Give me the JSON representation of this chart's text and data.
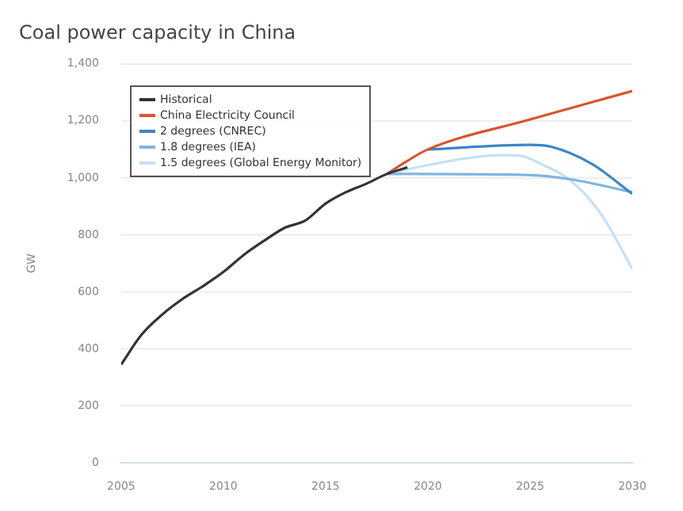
{
  "chart_data": {
    "type": "line",
    "title": "Coal power capacity in China",
    "ylabel": "GW",
    "xlim": [
      2005,
      2030
    ],
    "xticks": [
      2005,
      2010,
      2015,
      2020,
      2025,
      2030
    ],
    "ylim": [
      0,
      1400
    ],
    "yticks": [
      {
        "value": 0,
        "label": "0"
      },
      {
        "value": 200,
        "label": "200"
      },
      {
        "value": 400,
        "label": "400"
      },
      {
        "value": 600,
        "label": "600"
      },
      {
        "value": 800,
        "label": "800"
      },
      {
        "value": 1000,
        "label": "1,000"
      },
      {
        "value": 1200,
        "label": "1,200"
      },
      {
        "value": 1400,
        "label": "1,400"
      }
    ],
    "grid": "y",
    "legend": "top left",
    "marker": "none",
    "line_style": "solid",
    "series": [
      {
        "name": "Historical",
        "color": "#333333",
        "x": [
          2005,
          2006,
          2007,
          2008,
          2009,
          2010,
          2011,
          2012,
          2013,
          2014,
          2015,
          2016,
          2017,
          2018,
          2019
        ],
        "values": [
          345,
          450,
          520,
          575,
          620,
          670,
          730,
          780,
          825,
          850,
          910,
          950,
          980,
          1014,
          1037
        ]
      },
      {
        "name": "China Electricity Council",
        "color": "#d9542f",
        "x": [
          2018,
          2019,
          2020,
          2025,
          2030
        ],
        "values": [
          1014,
          1060,
          1100,
          1205,
          1305
        ]
      },
      {
        "name": "2 degrees (CNREC)",
        "color": "#3a86c8",
        "x": [
          2020,
          2025,
          2026,
          2028,
          2030
        ],
        "values": [
          1100,
          1116,
          1110,
          1050,
          944
        ]
      },
      {
        "name": "1.8 degrees (IEA)",
        "color": "#7fb5e0",
        "x": [
          2018,
          2025,
          2027,
          2030
        ],
        "values": [
          1014,
          1010,
          995,
          950
        ]
      },
      {
        "name": "1.5 degrees (Global Energy Monitor)",
        "color": "#c5e0f4",
        "x": [
          2018,
          2020,
          2022,
          2023.5,
          2024.5,
          2025.5,
          2027,
          2028.5,
          2030
        ],
        "values": [
          1014,
          1045,
          1070,
          1080,
          1078,
          1050,
          990,
          870,
          681
        ]
      }
    ]
  }
}
